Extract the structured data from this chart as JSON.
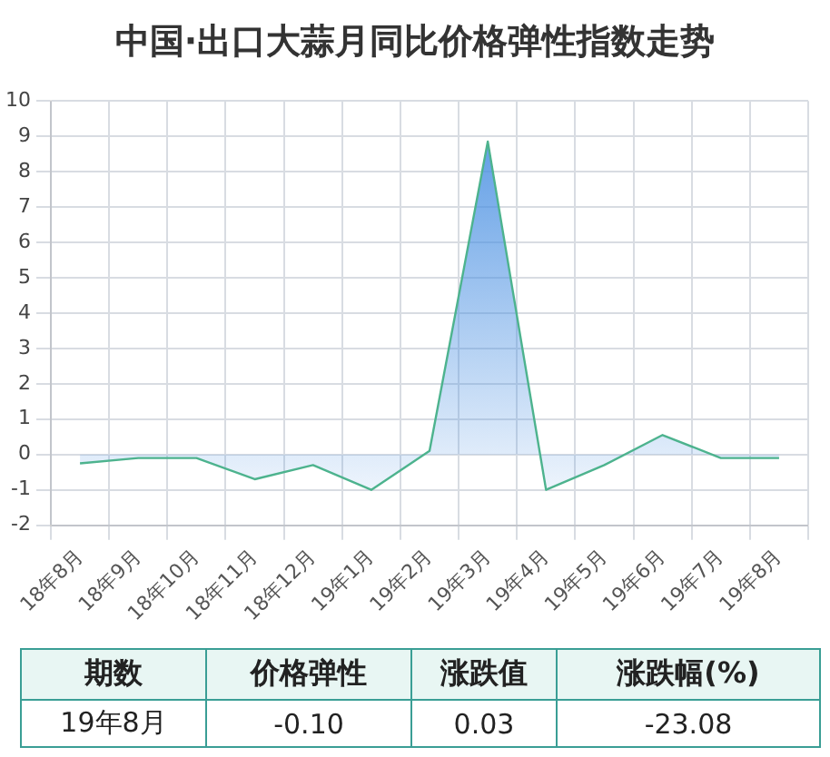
{
  "chart_data": {
    "type": "area",
    "title": "中国·出口大蒜月同比价格弹性指数走势",
    "categories": [
      "18年8月",
      "18年9月",
      "18年10月",
      "18年11月",
      "18年12月",
      "19年1月",
      "19年2月",
      "19年3月",
      "19年4月",
      "19年5月",
      "19年6月",
      "19年7月",
      "19年8月"
    ],
    "series": [
      {
        "color": "#4db38e",
        "values": [
          -0.25,
          -0.1,
          -0.1,
          -0.7,
          -0.3,
          -1.0,
          0.1,
          8.85,
          -1.0,
          -0.3,
          0.55,
          -0.1,
          -0.1
        ]
      }
    ],
    "ylim": [
      -2,
      10
    ],
    "yticks": [
      -2,
      -1,
      0,
      1,
      2,
      3,
      4,
      5,
      6,
      7,
      8,
      9,
      10
    ],
    "grid": true,
    "legend": false,
    "marker": "none",
    "line_style": "solid",
    "annotations": [
      "期数",
      "价格弹性",
      "涨跌值",
      "涨跌幅(%)",
      "19年8月",
      "-0.10",
      "0.03",
      "-23.08"
    ]
  }
}
